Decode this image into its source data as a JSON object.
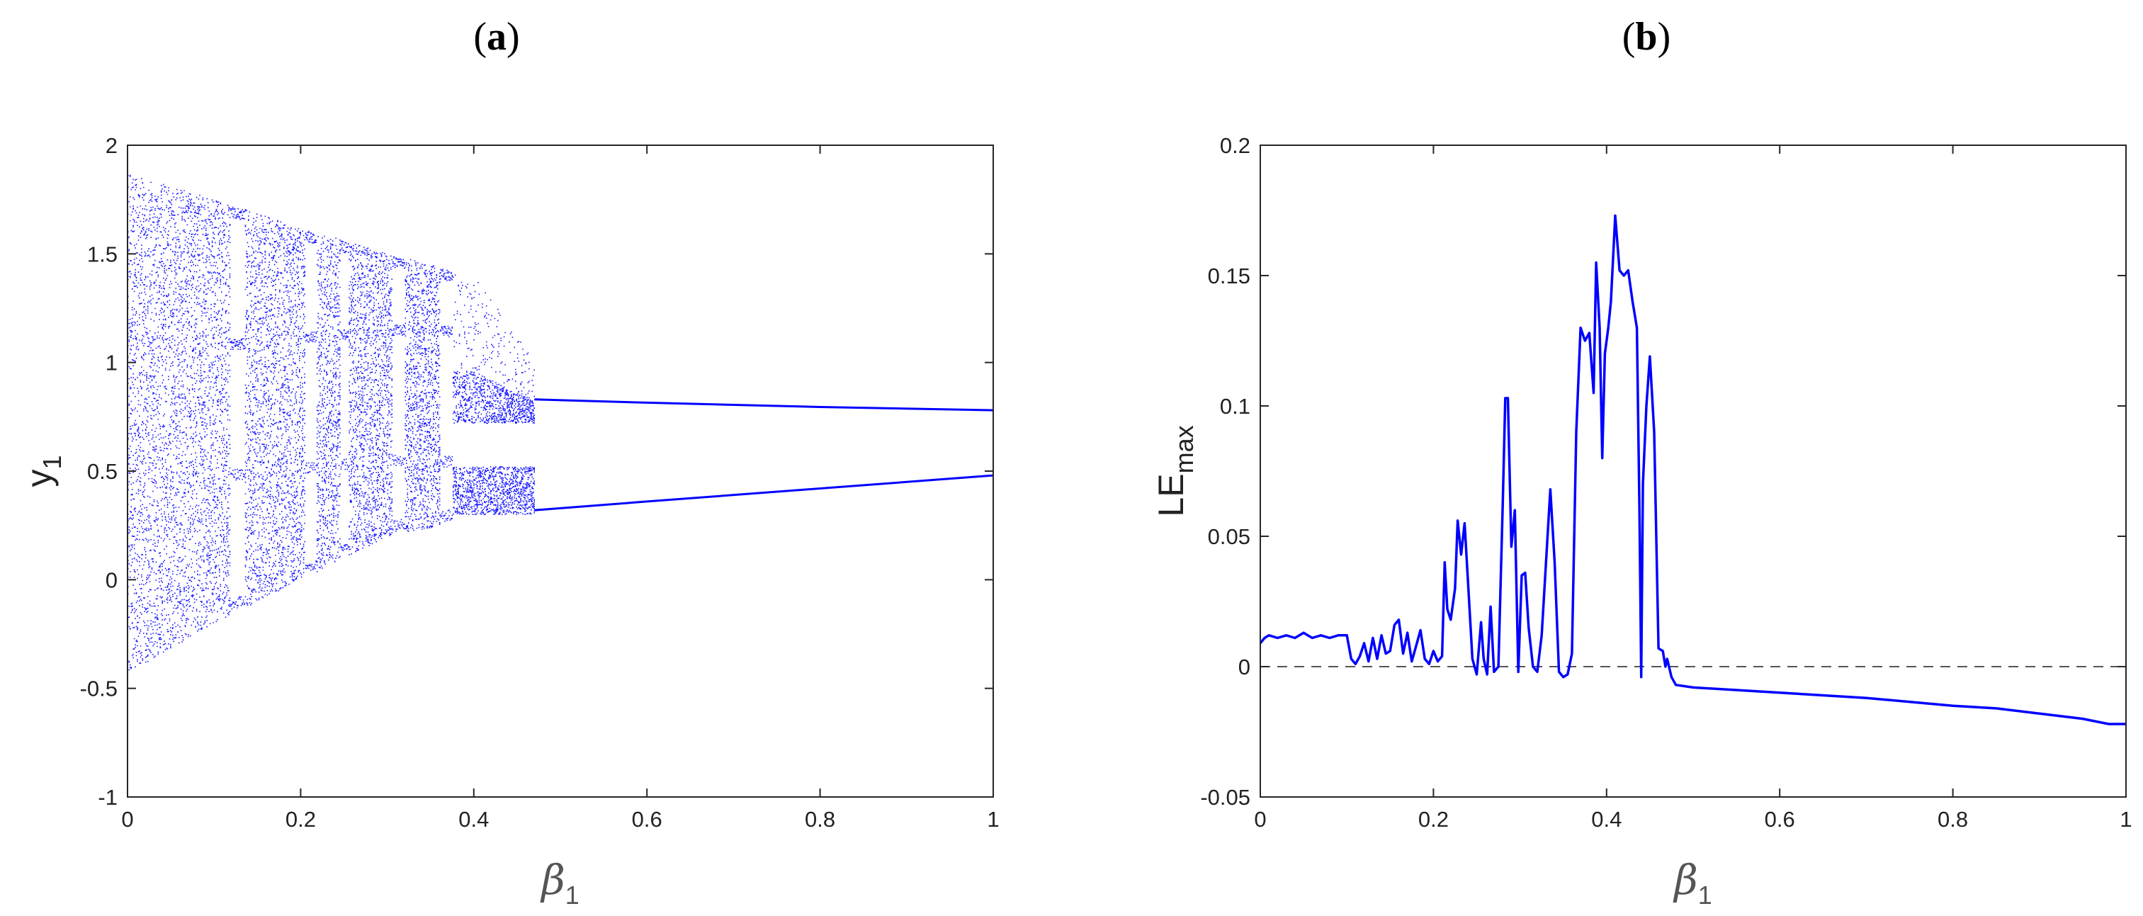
{
  "panels": [
    {
      "label_text": "a"
    },
    {
      "label_text": "b"
    }
  ],
  "chart_data": [
    {
      "type": "scatter",
      "panel": "(a)",
      "description_kind": "bifurcation diagram",
      "xlabel": "β1",
      "xlabel_main": "β",
      "xlabel_sub": "1",
      "ylabel": "y1",
      "ylabel_main": "y",
      "ylabel_sub": "1",
      "xlim": [
        0,
        1
      ],
      "ylim": [
        -1,
        2
      ],
      "xticks": [
        "0",
        "0.2",
        "0.4",
        "0.6",
        "0.8",
        "1"
      ],
      "yticks": [
        "-1",
        "-0.5",
        "0",
        "0.5",
        "1",
        "1.5",
        "2"
      ],
      "grid": false,
      "color": "#0000ff",
      "chaotic_envelope": {
        "x": [
          0,
          0.1,
          0.2,
          0.3,
          0.4,
          0.47
        ],
        "upper": [
          1.87,
          1.75,
          1.62,
          1.5,
          1.4,
          1.0
        ],
        "lower": [
          -0.43,
          -0.2,
          0.0,
          0.2,
          0.28,
          0.3
        ]
      },
      "windows": [
        [
          0.118,
          0.135
        ],
        [
          0.205,
          0.218
        ],
        [
          0.245,
          0.255
        ],
        [
          0.305,
          0.32
        ],
        [
          0.36,
          0.375
        ]
      ],
      "period2_branches": {
        "x": [
          0.47,
          0.6,
          0.8,
          1.0
        ],
        "upper": [
          0.83,
          0.815,
          0.795,
          0.78
        ],
        "lower": [
          0.32,
          0.36,
          0.42,
          0.48
        ]
      }
    },
    {
      "type": "line",
      "panel": "(b)",
      "xlabel": "β1",
      "xlabel_main": "β",
      "xlabel_sub": "1",
      "ylabel": "LEmax",
      "ylabel_main": "LE",
      "ylabel_sub": "max",
      "xlim": [
        0,
        1
      ],
      "ylim": [
        -0.05,
        0.2
      ],
      "xticks": [
        "0",
        "0.2",
        "0.4",
        "0.6",
        "0.8",
        "1"
      ],
      "yticks": [
        "-0.05",
        "0",
        "0.05",
        "0.1",
        "0.15",
        "0.2"
      ],
      "grid": false,
      "color": "#0000ff",
      "reference_line": {
        "y": 0,
        "style": "dashed",
        "color": "#555555"
      },
      "x": [
        0,
        0.005,
        0.01,
        0.02,
        0.03,
        0.04,
        0.05,
        0.06,
        0.07,
        0.08,
        0.09,
        0.1,
        0.105,
        0.11,
        0.115,
        0.12,
        0.125,
        0.13,
        0.135,
        0.14,
        0.145,
        0.15,
        0.155,
        0.16,
        0.165,
        0.17,
        0.175,
        0.18,
        0.185,
        0.19,
        0.195,
        0.2,
        0.205,
        0.21,
        0.213,
        0.216,
        0.22,
        0.225,
        0.228,
        0.232,
        0.236,
        0.24,
        0.245,
        0.25,
        0.255,
        0.258,
        0.262,
        0.266,
        0.27,
        0.275,
        0.28,
        0.283,
        0.286,
        0.29,
        0.294,
        0.298,
        0.302,
        0.306,
        0.31,
        0.315,
        0.32,
        0.325,
        0.33,
        0.335,
        0.34,
        0.345,
        0.35,
        0.355,
        0.36,
        0.365,
        0.37,
        0.375,
        0.38,
        0.385,
        0.388,
        0.392,
        0.395,
        0.398,
        0.402,
        0.405,
        0.41,
        0.415,
        0.42,
        0.425,
        0.43,
        0.435,
        0.438,
        0.44,
        0.442,
        0.446,
        0.45,
        0.455,
        0.46,
        0.465,
        0.468,
        0.47,
        0.475,
        0.48,
        0.5,
        0.6,
        0.7,
        0.8,
        0.85,
        0.9,
        0.95,
        0.98,
        1.0
      ],
      "y": [
        0.009,
        0.011,
        0.012,
        0.011,
        0.012,
        0.011,
        0.013,
        0.011,
        0.012,
        0.011,
        0.012,
        0.012,
        0.003,
        0.001,
        0.004,
        0.009,
        0.002,
        0.011,
        0.003,
        0.012,
        0.005,
        0.006,
        0.016,
        0.018,
        0.005,
        0.013,
        0.002,
        0.008,
        0.014,
        0.003,
        0.001,
        0.006,
        0.002,
        0.004,
        0.04,
        0.022,
        0.018,
        0.03,
        0.056,
        0.043,
        0.055,
        0.032,
        0.003,
        -0.003,
        0.017,
        0.003,
        -0.003,
        0.023,
        -0.002,
        0.0,
        0.062,
        0.103,
        0.103,
        0.046,
        0.06,
        -0.002,
        0.035,
        0.036,
        0.015,
        0.0,
        -0.002,
        0.012,
        0.04,
        0.068,
        0.04,
        -0.002,
        -0.004,
        -0.003,
        0.005,
        0.09,
        0.13,
        0.125,
        0.128,
        0.105,
        0.155,
        0.13,
        0.08,
        0.12,
        0.13,
        0.14,
        0.173,
        0.152,
        0.15,
        0.152,
        0.14,
        0.13,
        0.06,
        -0.004,
        0.07,
        0.1,
        0.119,
        0.09,
        0.007,
        0.006,
        0.0,
        0.003,
        -0.004,
        -0.007,
        -0.008,
        -0.01,
        -0.012,
        -0.015,
        -0.016,
        -0.018,
        -0.02,
        -0.022,
        -0.022
      ]
    }
  ]
}
